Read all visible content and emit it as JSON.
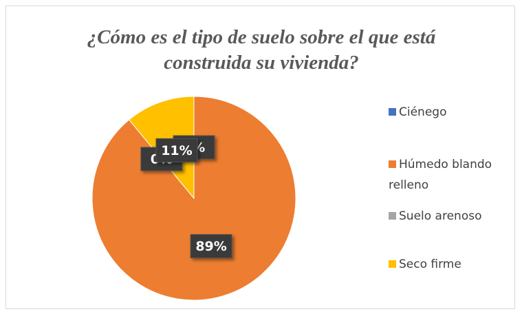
{
  "chart_data": {
    "type": "pie",
    "title": "¿Cómo es el tipo de suelo sobre el que está construida su vivienda?",
    "categories": [
      "Ciénego",
      "Húmedo blando relleno",
      "Suelo arenoso",
      "Seco firme"
    ],
    "values": [
      0,
      89,
      0,
      11
    ],
    "value_labels": [
      "0%",
      "89%",
      "0%",
      "11%"
    ],
    "colors": [
      "#4472c4",
      "#ed7d31",
      "#a5a5a5",
      "#ffc000"
    ],
    "legend": "right"
  }
}
